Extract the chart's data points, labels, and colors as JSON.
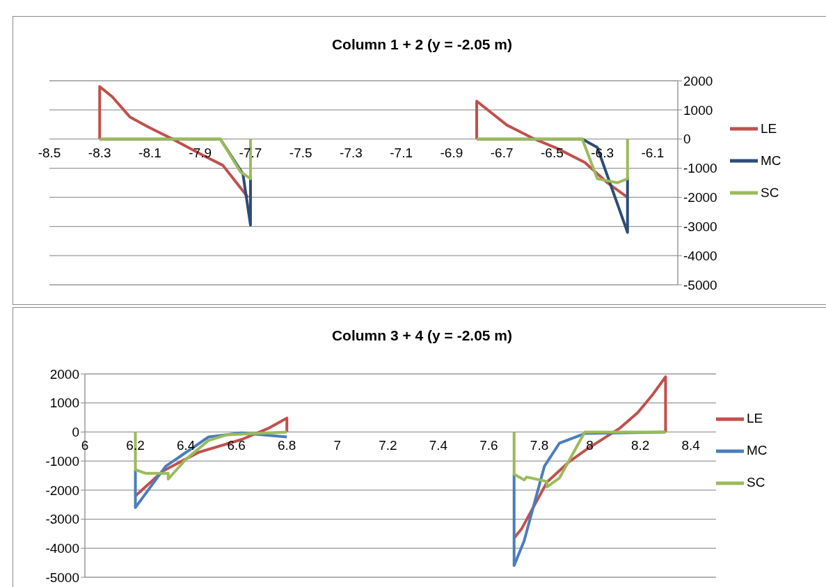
{
  "chart_data": [
    {
      "type": "line",
      "title": "Column 1 + 2 (y = -2.05 m)",
      "xlim": [
        -8.5,
        -6.0
      ],
      "xticks": [
        -8.5,
        -8.3,
        -8.1,
        -7.9,
        -7.7,
        -7.5,
        -7.3,
        -7.1,
        -6.9,
        -6.7,
        -6.5,
        -6.3,
        -6.1
      ],
      "y2lim": [
        -5000,
        2000
      ],
      "y2ticks": [
        -5000,
        -4000,
        -3000,
        -2000,
        -1000,
        0,
        1000,
        2000
      ],
      "grid": "y",
      "legend": "right",
      "marker": "none",
      "line_style": "solid",
      "series": [
        {
          "name": "LE",
          "color": "#c0504d",
          "axis": "y2",
          "x": [
            -8.3,
            -8.3,
            -8.25,
            -8.18,
            -8.11,
            -8.01,
            -7.88,
            -7.81,
            -7.71,
            -7.0,
            -6.8,
            -6.8,
            -6.68,
            -6.57,
            -6.48,
            -6.37,
            -6.28,
            -6.2
          ],
          "values": [
            0,
            1800,
            1450,
            760,
            430,
            0,
            -600,
            -900,
            -2000,
            null,
            0,
            1300,
            480,
            0,
            -320,
            -800,
            -1500,
            -2000
          ]
        },
        {
          "name": "MC",
          "color": "#2c4d75",
          "axis": "y2",
          "x": [
            -8.3,
            -7.82,
            -7.73,
            -7.7,
            -7.7,
            -7.0,
            -6.8,
            -6.38,
            -6.32,
            -6.2,
            -6.2
          ],
          "values": [
            0,
            0,
            -1200,
            -2950,
            -1300,
            null,
            0,
            0,
            -290,
            -3200,
            -1300
          ]
        },
        {
          "name": "SC",
          "color": "#9bbb59",
          "axis": "y2",
          "x": [
            -8.3,
            -7.82,
            -7.74,
            -7.7,
            -7.7,
            -7.0,
            -6.8,
            -6.38,
            -6.32,
            -6.24,
            -6.2,
            -6.2
          ],
          "values": [
            0,
            0,
            -1120,
            -1360,
            0,
            null,
            0,
            0,
            -1360,
            -1500,
            -1360,
            0
          ]
        }
      ]
    },
    {
      "type": "line",
      "title": "Column 3 + 4 (y = -2.05 m)",
      "xlim": [
        6,
        8.5
      ],
      "xticks": [
        6,
        6.2,
        6.4,
        6.6,
        6.8,
        7,
        7.2,
        7.4,
        7.6,
        7.8,
        8,
        8.2,
        8.4
      ],
      "ylim": [
        -5000,
        2000
      ],
      "yticks": [
        -5000,
        -4000,
        -3000,
        -2000,
        -1000,
        0,
        1000,
        2000
      ],
      "grid": "y",
      "legend": "right",
      "marker": "none",
      "line_style": "solid",
      "series": [
        {
          "name": "LE",
          "color": "#c0504d",
          "x": [
            6.2,
            6.31,
            6.45,
            6.62,
            6.73,
            6.8,
            6.8,
            7.2,
            7.7,
            7.73,
            7.83,
            7.92,
            7.99,
            8.12,
            8.19,
            8.25,
            8.3,
            8.3
          ],
          "values": [
            -2200,
            -1340,
            -700,
            -260,
            140,
            480,
            0,
            null,
            -3650,
            -3330,
            -1730,
            -1010,
            -580,
            140,
            670,
            1300,
            1900,
            0
          ]
        },
        {
          "name": "MC",
          "color": "#4a7ebb",
          "x": [
            6.2,
            6.2,
            6.32,
            6.49,
            6.62,
            6.8,
            7.2,
            7.7,
            7.7,
            7.74,
            7.82,
            7.88,
            7.98,
            8.3
          ],
          "values": [
            -1300,
            -2600,
            -1180,
            -170,
            -30,
            -170,
            null,
            -1450,
            -4600,
            -3740,
            -1180,
            -380,
            -50,
            0
          ]
        },
        {
          "name": "SC",
          "color": "#9bbb59",
          "x": [
            6.2,
            6.2,
            6.24,
            6.33,
            6.33,
            6.4,
            6.49,
            6.56,
            6.8,
            7.2,
            7.7,
            7.7,
            7.74,
            7.75,
            7.83,
            7.83,
            7.88,
            7.98,
            8.05,
            8.3
          ],
          "values": [
            0,
            -1300,
            -1420,
            -1420,
            -1620,
            -940,
            -290,
            -100,
            0,
            null,
            0,
            -1450,
            -1650,
            -1550,
            -1700,
            -1890,
            -1580,
            0,
            0,
            0
          ]
        }
      ]
    }
  ]
}
